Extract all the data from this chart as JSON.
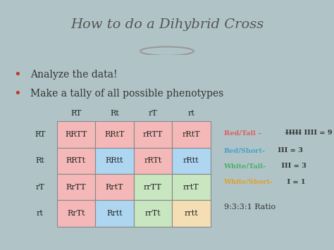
{
  "title": "How to do a Dihybrid Cross",
  "bullet1": "Analyze the data!",
  "bullet2": "Make a tally of all possible phenotypes",
  "col_headers": [
    "RT",
    "Rt",
    "rT",
    "rt"
  ],
  "row_headers": [
    "RT",
    "Rt",
    "rT",
    "rt"
  ],
  "table_data": [
    [
      "RRTT",
      "RRtT",
      "rRTT",
      "rRtT"
    ],
    [
      "RRTt",
      "RRtt",
      "rRTt",
      "rRtt"
    ],
    [
      "RrTT",
      "RrtT",
      "rrTT",
      "rrtT"
    ],
    [
      "RrTt",
      "Rrtt",
      "rrTt",
      "rrtt"
    ]
  ],
  "cell_colors": [
    [
      "#f4b8b8",
      "#f4b8b8",
      "#f4b8b8",
      "#f4b8b8"
    ],
    [
      "#f4b8b8",
      "#aed6f1",
      "#f4b8b8",
      "#aed6f1"
    ],
    [
      "#f4b8b8",
      "#f4b8b8",
      "#c8e6c0",
      "#c8e6c0"
    ],
    [
      "#f4b8b8",
      "#aed6f1",
      "#c8e6c0",
      "#f5deb3"
    ]
  ],
  "legend_red_tall": "Red/Tall – ",
  "legend_red_short": "Red/Short- III = 3",
  "legend_white_tall": "White/Tall- III = 3",
  "legend_white_short": "White/Short- I = 1",
  "legend_ratio": "9:3:3:1 Ratio",
  "bg_main": "#b0c4c8",
  "bg_title": "#ffffff",
  "title_color": "#555555",
  "bullet_color": "#333333",
  "red_color": "#e05c5c",
  "blue_color": "#4aa0c8",
  "green_color": "#4caf6a",
  "orange_color": "#e0a020",
  "tally_color": "#333333",
  "ratio_color": "#333333"
}
